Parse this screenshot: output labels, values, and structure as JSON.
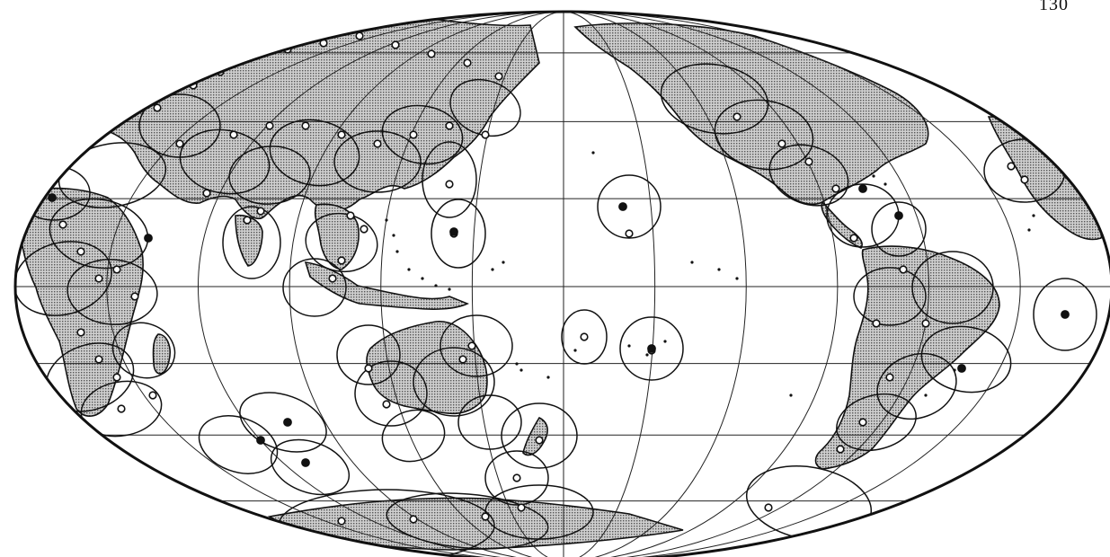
{
  "page": {
    "number": "130"
  },
  "map": {
    "projection": "mollweide",
    "central_meridian_deg": 150,
    "graticule_step_deg": 30,
    "colors": {
      "ink": "#111111",
      "land_hatch": "#9a9a9a",
      "paper": "#ffffff"
    },
    "legend_symbols": [
      "open-circle-station",
      "filled-circle-station",
      "error-ellipse"
    ]
  }
}
